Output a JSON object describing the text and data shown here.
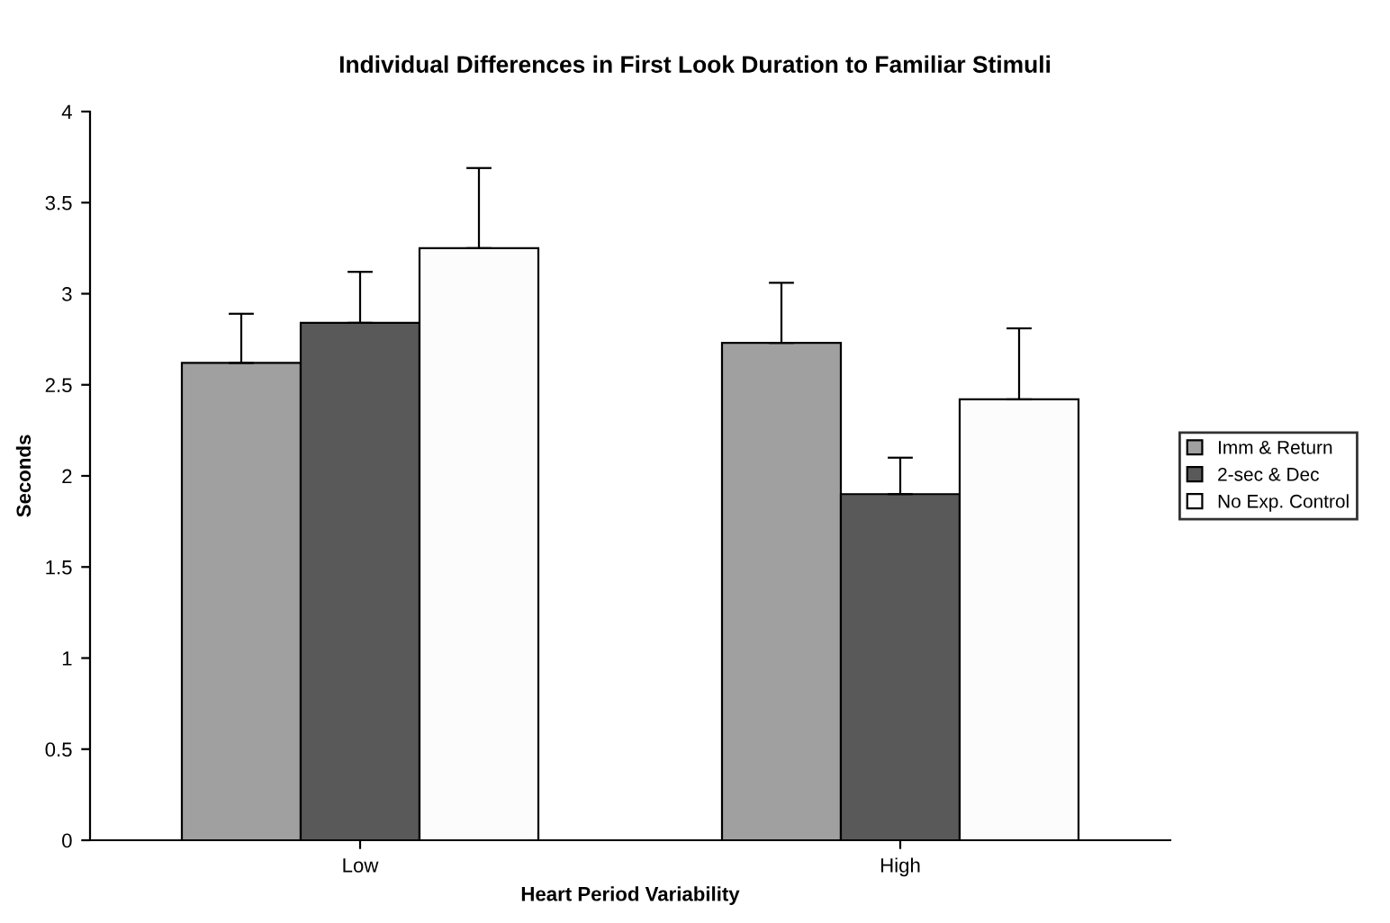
{
  "chart_data": {
    "type": "bar",
    "title": "Individual Differences in First Look Duration to Familiar Stimuli",
    "xlabel": "Heart Period Variability",
    "ylabel": "Seconds",
    "categories": [
      "Low",
      "High"
    ],
    "series": [
      {
        "name": "Imm & Return",
        "color": "#a0a0a0",
        "values": [
          2.62,
          2.73
        ],
        "errors": [
          [
            2.62,
            2.89
          ],
          [
            2.73,
            3.06
          ]
        ]
      },
      {
        "name": "2-sec & Dec",
        "color": "#595959",
        "values": [
          2.84,
          1.9
        ],
        "errors": [
          [
            2.84,
            3.12
          ],
          [
            1.9,
            2.1
          ]
        ]
      },
      {
        "name": "No Exp. Control",
        "color": "#fcfcfc",
        "values": [
          3.25,
          2.42
        ],
        "errors": [
          [
            3.25,
            3.69
          ],
          [
            2.42,
            2.81
          ]
        ]
      }
    ],
    "ylim": [
      0,
      4
    ],
    "yticks": [
      0,
      0.5,
      1,
      1.5,
      2,
      2.5,
      3,
      3.5,
      4
    ],
    "grid": false,
    "legend": "right"
  }
}
